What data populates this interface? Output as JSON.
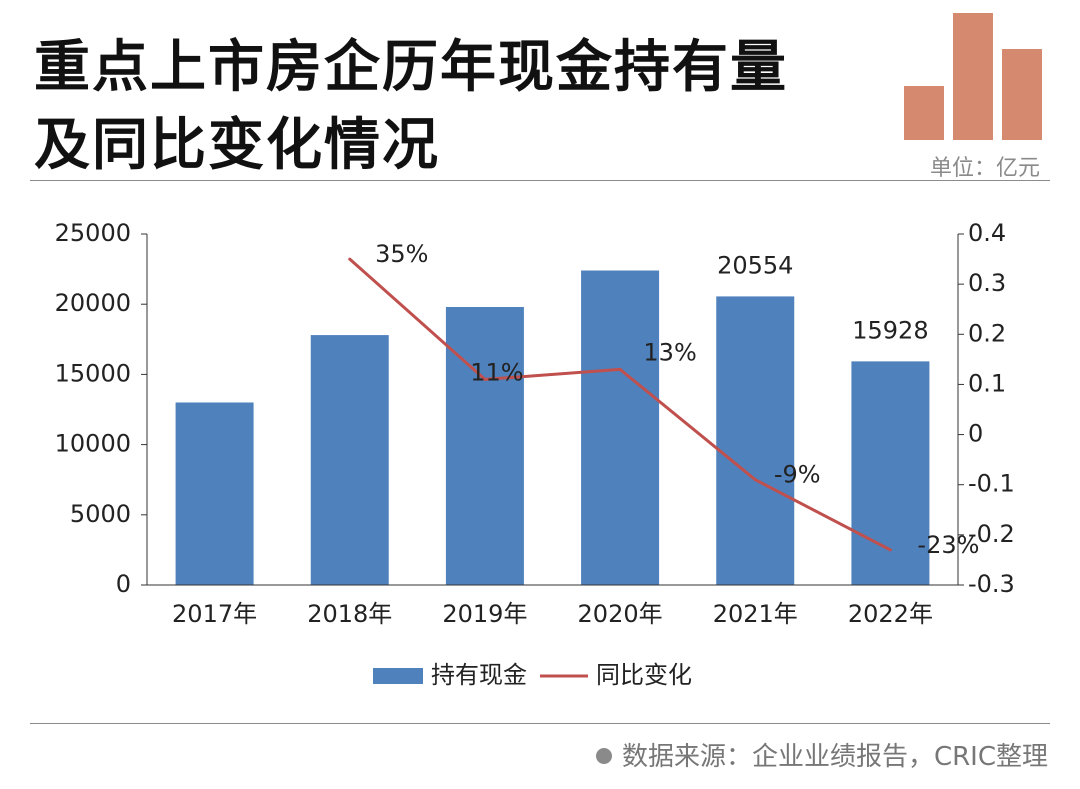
{
  "header": {
    "title_line1": "重点上市房企历年现金持有量",
    "title_line2": "及同比变化情况",
    "unit": "单位：亿元"
  },
  "chart_data": {
    "type": "bar",
    "categories": [
      "2017年",
      "2018年",
      "2019年",
      "2020年",
      "2021年",
      "2022年"
    ],
    "series": [
      {
        "name": "持有现金",
        "type": "bar",
        "axis": "left",
        "color": "#4f81bd",
        "values": [
          13000,
          17800,
          19800,
          22400,
          20554,
          15928
        ],
        "data_labels": [
          "",
          "",
          "",
          "",
          "20554",
          "15928"
        ]
      },
      {
        "name": "同比变化",
        "type": "line",
        "axis": "right",
        "color": "#c0504d",
        "values": [
          null,
          0.35,
          0.11,
          0.13,
          -0.09,
          -0.23
        ],
        "data_labels": [
          "",
          "35%",
          "11%",
          "13%",
          "-9%",
          "-23%"
        ]
      }
    ],
    "left_axis": {
      "ylim": [
        0,
        25000
      ],
      "ticks": [
        0,
        5000,
        10000,
        15000,
        20000,
        25000
      ],
      "tick_labels": [
        "0",
        "5000",
        "10000",
        "15000",
        "20000",
        "25000"
      ]
    },
    "right_axis": {
      "ylim": [
        -0.3,
        0.4
      ],
      "ticks": [
        -0.3,
        -0.2,
        -0.1,
        0,
        0.1,
        0.2,
        0.3,
        0.4
      ],
      "tick_labels": [
        "-0.3",
        "-0.2",
        "-0.1",
        "0",
        "0.1",
        "0.2",
        "0.3",
        "0.4"
      ]
    },
    "grid": false,
    "legend": "bottom-center"
  },
  "footer": {
    "source": "数据来源：企业业绩报告，CRIC整理"
  },
  "colors": {
    "bar": "#4f81bd",
    "line": "#c0504d",
    "deco": "#d58a70"
  }
}
